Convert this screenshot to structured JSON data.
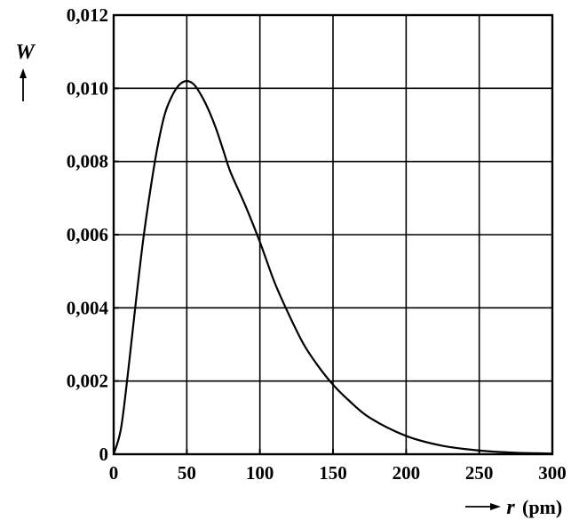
{
  "chart_data": {
    "type": "line",
    "title": "",
    "xlabel": "r",
    "xunit": "(pm)",
    "ylabel": "W",
    "xlim": [
      0,
      300
    ],
    "ylim": [
      0,
      0.012
    ],
    "x_ticks": [
      0,
      50,
      100,
      150,
      200,
      250,
      300
    ],
    "x_tick_labels": [
      "0",
      "50",
      "100",
      "150",
      "200",
      "250",
      "300"
    ],
    "y_ticks": [
      0,
      0.002,
      0.004,
      0.006,
      0.008,
      0.01,
      0.012
    ],
    "y_tick_labels": [
      "0",
      "0,002",
      "0,004",
      "0,006",
      "0,008",
      "0,010",
      "0,012"
    ],
    "grid": true,
    "series": [
      {
        "values": [
          [
            0,
            0
          ],
          [
            5,
            0.0007
          ],
          [
            10,
            0.0023
          ],
          [
            15,
            0.0041
          ],
          [
            20,
            0.0058
          ],
          [
            25,
            0.0072
          ],
          [
            30,
            0.0084
          ],
          [
            35,
            0.0093
          ],
          [
            40,
            0.0098
          ],
          [
            45,
            0.0101
          ],
          [
            50,
            0.0102
          ],
          [
            55,
            0.0101
          ],
          [
            60,
            0.0098
          ],
          [
            65,
            0.0094
          ],
          [
            70,
            0.0089
          ],
          [
            75,
            0.0083
          ],
          [
            80,
            0.0077
          ],
          [
            90,
            0.0068
          ],
          [
            100,
            0.0058
          ],
          [
            110,
            0.0047
          ],
          [
            120,
            0.0038
          ],
          [
            130,
            0.003
          ],
          [
            140,
            0.0024
          ],
          [
            150,
            0.0019
          ],
          [
            160,
            0.0015
          ],
          [
            175,
            0.001
          ],
          [
            200,
            0.0005
          ],
          [
            225,
            0.00023
          ],
          [
            250,
            0.0001
          ],
          [
            275,
            4e-05
          ],
          [
            300,
            2e-05
          ]
        ]
      }
    ]
  }
}
